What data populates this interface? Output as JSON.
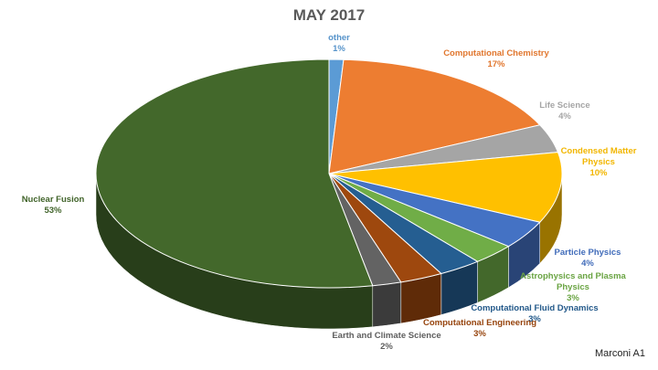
{
  "chart_data": {
    "type": "pie",
    "title": "MAY 2017",
    "footnote": "Marconi A1",
    "categories": [
      "other",
      "Computational Chemistry",
      "Life Science",
      "Condensed Matter Physics",
      "Particle Physics",
      "Astrophysics and Plasma Physics",
      "Computational Fluid Dynamics",
      "Computational Engineering",
      "Earth and Climate Science",
      "Nuclear Fusion"
    ],
    "values": [
      1,
      17,
      4,
      10,
      4,
      3,
      3,
      3,
      2,
      53
    ],
    "value_labels": [
      "1%",
      "17%",
      "4%",
      "10%",
      "4%",
      "3%",
      "3%",
      "3%",
      "2%",
      "53%"
    ],
    "colors": [
      "#5b9bd5",
      "#ed7d31",
      "#a5a5a5",
      "#ffc000",
      "#4472c4",
      "#70ad47",
      "#255e91",
      "#9e480e",
      "#636363",
      "#43682b"
    ]
  }
}
